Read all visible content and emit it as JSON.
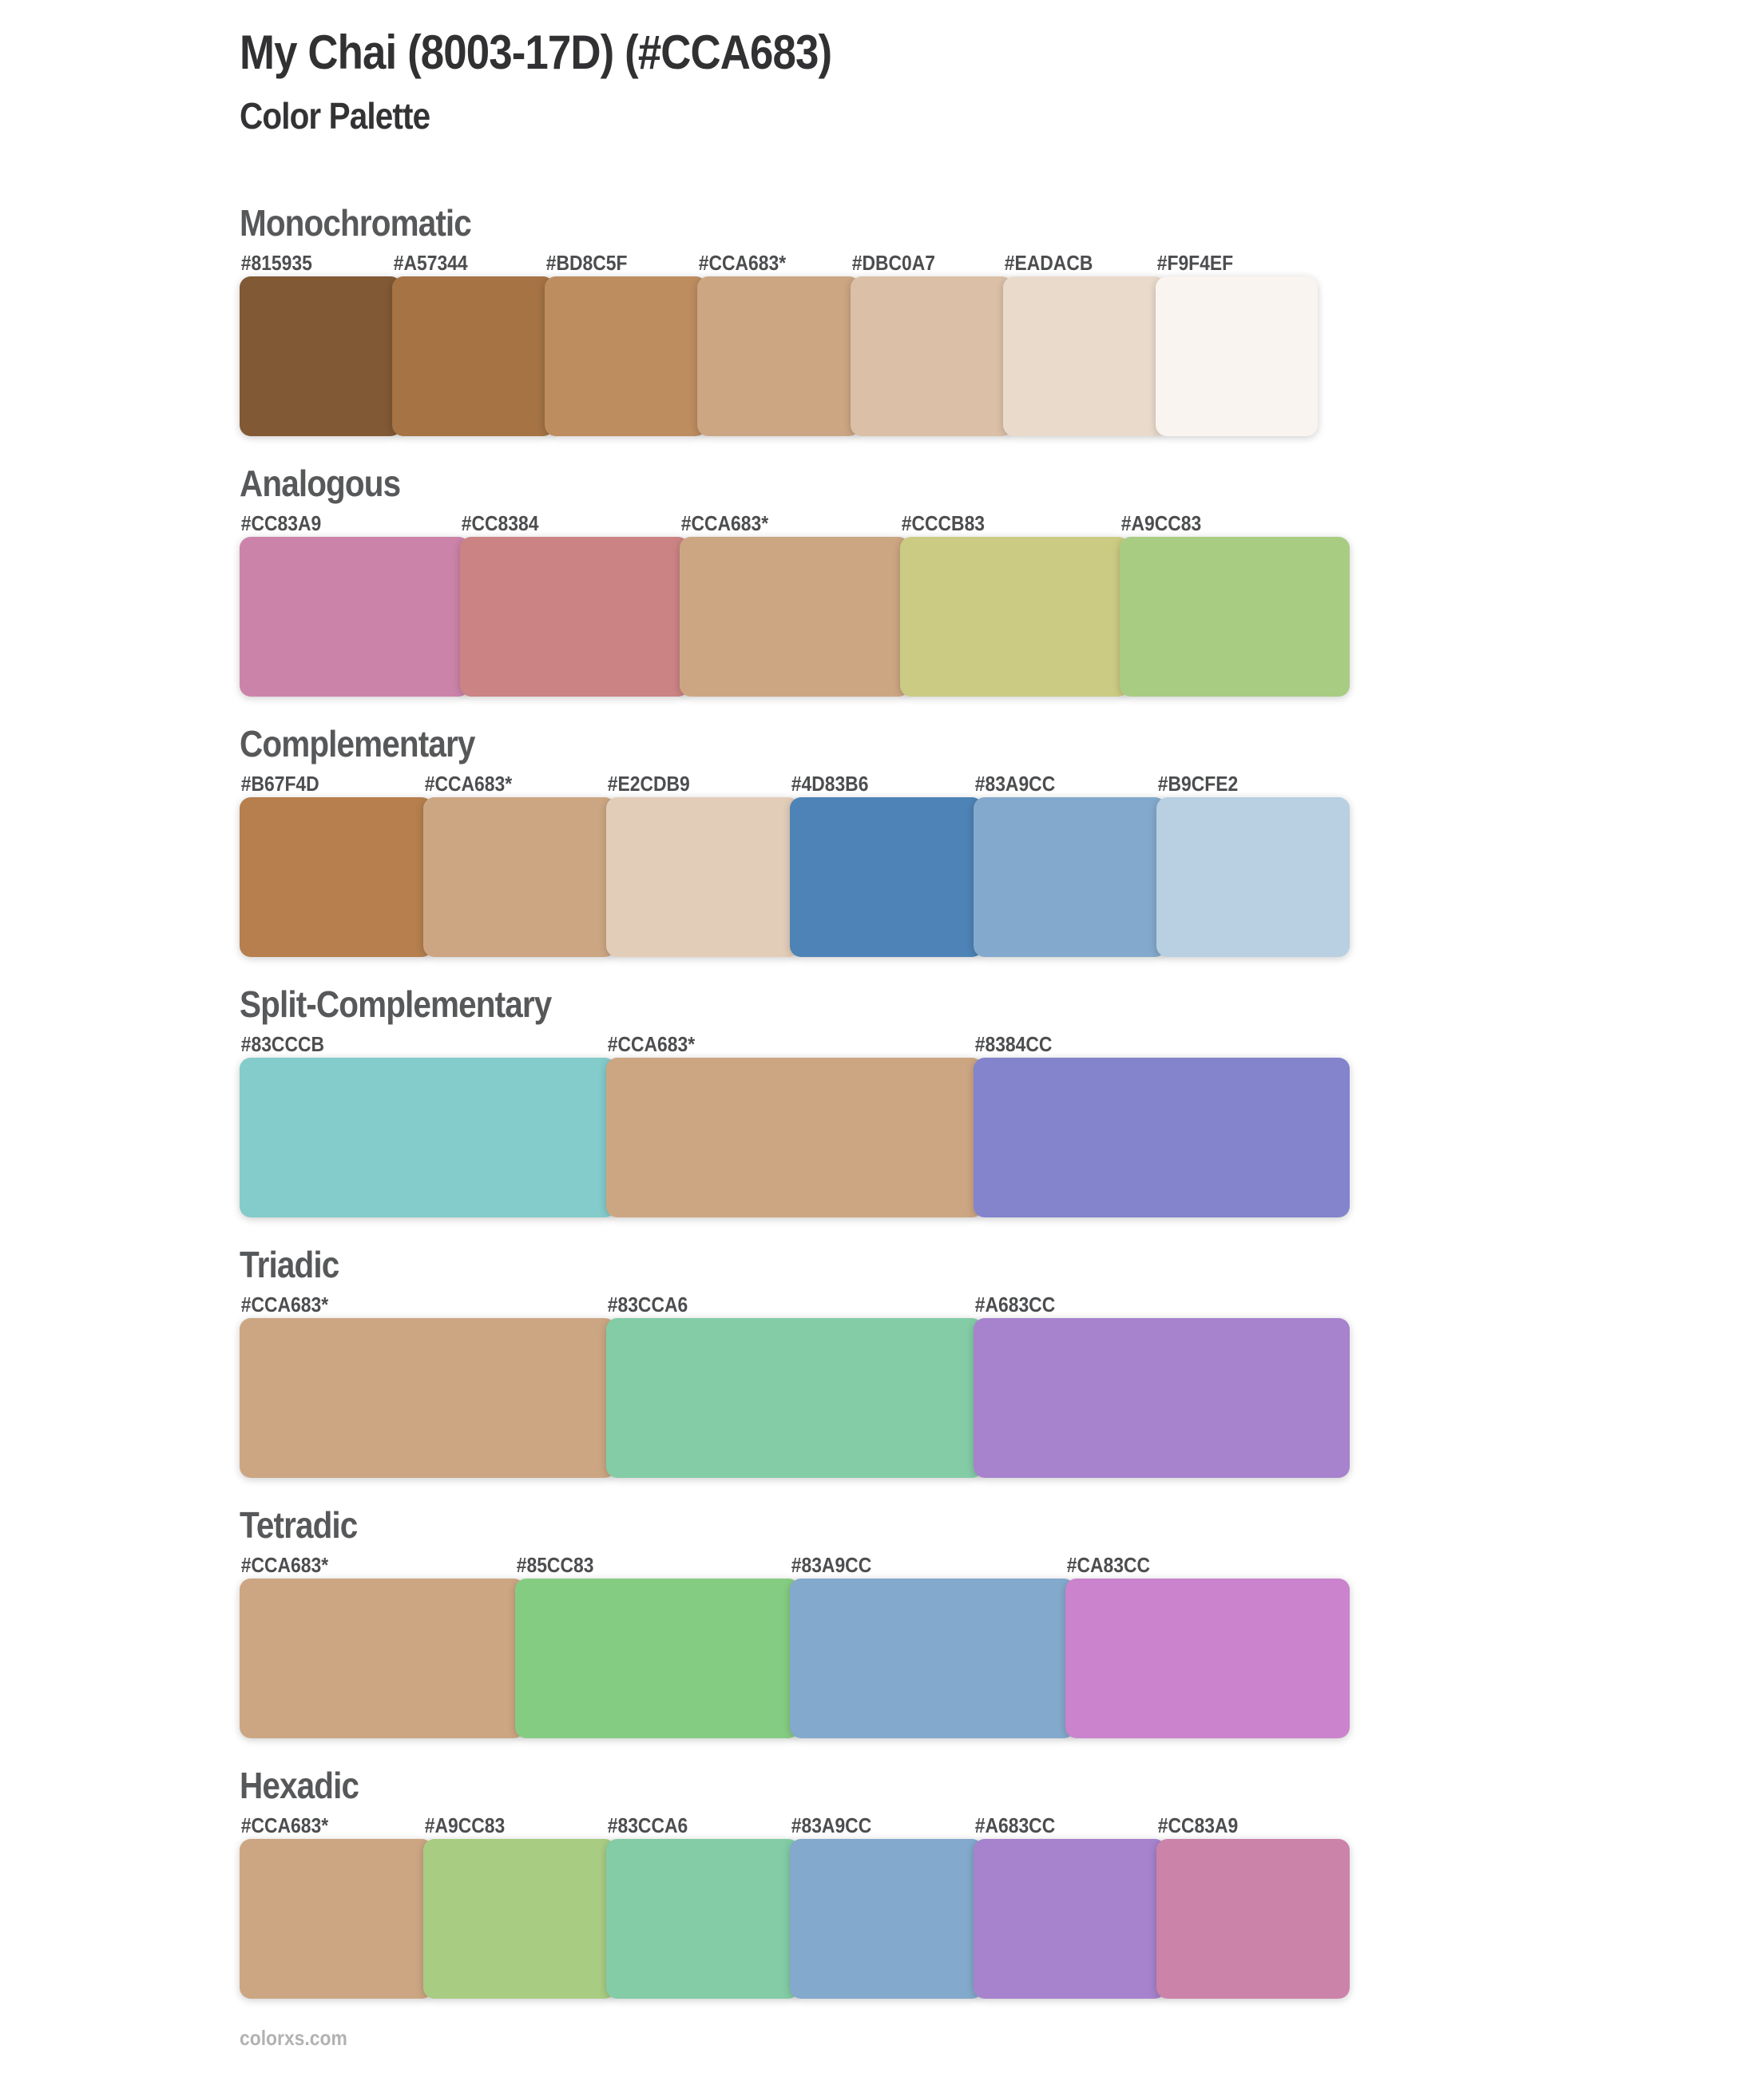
{
  "page": {
    "title": "My Chai (8003-17D) (#CCA683)",
    "subtitle": "Color Palette",
    "base_color": "#CCA683",
    "footer": "colorxs.com"
  },
  "sections": [
    {
      "name": "Monochromatic",
      "swatches": [
        {
          "label": "#815935",
          "color": "#815935"
        },
        {
          "label": "#A57344",
          "color": "#A57344"
        },
        {
          "label": "#BD8C5F",
          "color": "#BD8C5F"
        },
        {
          "label": "#CCA683*",
          "color": "#CCA683"
        },
        {
          "label": "#DBC0A7",
          "color": "#DBC0A7"
        },
        {
          "label": "#EADACB",
          "color": "#EADACB"
        },
        {
          "label": "#F9F4EF",
          "color": "#F9F4EF"
        }
      ]
    },
    {
      "name": "Analogous",
      "swatches": [
        {
          "label": "#CC83A9",
          "color": "#CC83A9"
        },
        {
          "label": "#CC8384",
          "color": "#CC8384"
        },
        {
          "label": "#CCA683*",
          "color": "#CCA683"
        },
        {
          "label": "#CCCB83",
          "color": "#CCCB83"
        },
        {
          "label": "#A9CC83",
          "color": "#A9CC83"
        }
      ]
    },
    {
      "name": "Complementary",
      "swatches": [
        {
          "label": "#B67F4D",
          "color": "#B67F4D"
        },
        {
          "label": "#CCA683*",
          "color": "#CCA683"
        },
        {
          "label": "#E2CDB9",
          "color": "#E2CDB9"
        },
        {
          "label": "#4D83B6",
          "color": "#4D83B6"
        },
        {
          "label": "#83A9CC",
          "color": "#83A9CC"
        },
        {
          "label": "#B9CFE2",
          "color": "#B9CFE2"
        }
      ]
    },
    {
      "name": "Split-Complementary",
      "swatches": [
        {
          "label": "#83CCCB",
          "color": "#83CCCB"
        },
        {
          "label": "#CCA683*",
          "color": "#CCA683"
        },
        {
          "label": "#8384CC",
          "color": "#8384CC"
        }
      ]
    },
    {
      "name": "Triadic",
      "swatches": [
        {
          "label": "#CCA683*",
          "color": "#CCA683"
        },
        {
          "label": "#83CCA6",
          "color": "#83CCA6"
        },
        {
          "label": "#A683CC",
          "color": "#A683CC"
        }
      ]
    },
    {
      "name": "Tetradic",
      "swatches": [
        {
          "label": "#CCA683*",
          "color": "#CCA683"
        },
        {
          "label": "#85CC83",
          "color": "#85CC83"
        },
        {
          "label": "#83A9CC",
          "color": "#83A9CC"
        },
        {
          "label": "#CA83CC",
          "color": "#CA83CC"
        }
      ]
    },
    {
      "name": "Hexadic",
      "swatches": [
        {
          "label": "#CCA683*",
          "color": "#CCA683"
        },
        {
          "label": "#A9CC83",
          "color": "#A9CC83"
        },
        {
          "label": "#83CCA6",
          "color": "#83CCA6"
        },
        {
          "label": "#83A9CC",
          "color": "#83A9CC"
        },
        {
          "label": "#A683CC",
          "color": "#A683CC"
        },
        {
          "label": "#CC83A9",
          "color": "#CC83A9"
        }
      ]
    }
  ]
}
